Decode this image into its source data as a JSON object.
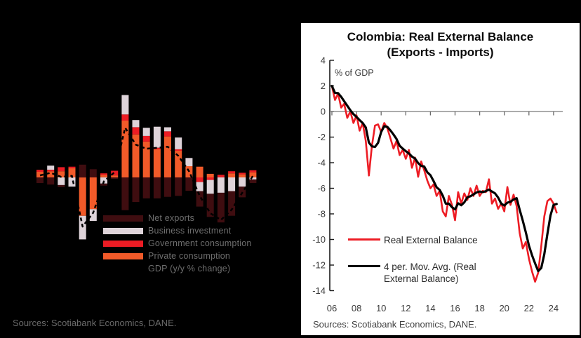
{
  "chart_data": [
    {
      "id": "gdp-contributions-stacked-bars",
      "type": "bar",
      "subtype": "stacked",
      "background": "#000000",
      "axis_labels_visible": false,
      "implied_unit": "percentage points",
      "n_bars": 21,
      "series": [
        {
          "name": "Private consumption",
          "color": "#f15a29",
          "values": [
            1.1,
            1.2,
            1.2,
            1.8,
            -7.5,
            -6.2,
            0.5,
            0.4,
            11.1,
            8.4,
            7.0,
            5.5,
            8.0,
            5.2,
            2.2,
            2.1,
            0.7,
            0.0,
            0.8,
            0.6,
            1.0
          ]
        },
        {
          "name": "Government consumption",
          "color": "#ec1c24",
          "values": [
            0.4,
            0.3,
            0.8,
            0.3,
            0.0,
            0.0,
            0.3,
            0.9,
            1.2,
            1.4,
            1.1,
            0.3,
            1.0,
            0.3,
            0.0,
            -0.9,
            -0.5,
            0.5,
            0.4,
            0.3,
            0.4
          ]
        },
        {
          "name": "Business investment",
          "color": "#ded3d9",
          "values": [
            0.0,
            0.8,
            -1.5,
            -1.8,
            -4.6,
            -2.3,
            -1.2,
            0.0,
            3.8,
            1.4,
            1.6,
            4.1,
            0.8,
            2.3,
            1.6,
            -1.8,
            -2.7,
            -3.0,
            -2.7,
            -1.8,
            -0.4
          ]
        },
        {
          "name": "Net exports",
          "color": "#3f0d10",
          "values": [
            -1.1,
            -1.4,
            -0.4,
            0.0,
            2.5,
            1.6,
            -0.4,
            -0.3,
            -6.4,
            -4.8,
            -4.1,
            -4.1,
            -3.8,
            -3.6,
            -2.6,
            -3.0,
            -4.5,
            -5.8,
            -4.8,
            -2.1,
            -0.7
          ]
        },
        {
          "name": "GDP (y/y % change)",
          "color": "#000000",
          "style": "dashed-line",
          "values": [
            0.4,
            0.9,
            0.1,
            0.3,
            -9.6,
            -6.9,
            -0.8,
            1.0,
            9.7,
            6.4,
            5.6,
            5.8,
            6.0,
            4.2,
            1.2,
            -3.6,
            -7.0,
            -8.3,
            -6.3,
            -3.0,
            0.3
          ]
        }
      ],
      "legend": [
        {
          "label": "Net exports",
          "color": "#3f0d10",
          "type": "swatch"
        },
        {
          "label": "Business investment",
          "color": "#ded3d9",
          "type": "swatch"
        },
        {
          "label": "Government consumption",
          "color": "#ec1c24",
          "type": "swatch"
        },
        {
          "label": "Private consumption",
          "color": "#f15a29",
          "type": "swatch"
        },
        {
          "label": "GDP (y/y % change)",
          "color": "#000000",
          "type": "dashed-line"
        }
      ],
      "sources": "Sources: Scotiabank Economics, DANE."
    },
    {
      "id": "real-external-balance-line",
      "type": "line",
      "title": "Colombia: Real External Balance (Exports - Imports)",
      "annotation": "% of GDP",
      "ylim": [
        -14,
        4
      ],
      "ytick_step": 2,
      "x_start_year": 2006,
      "x_step_years": 0.25,
      "xtick_labels": [
        "06",
        "08",
        "10",
        "12",
        "14",
        "16",
        "18",
        "20",
        "22",
        "24"
      ],
      "grid": "zero-line-only",
      "legend_position": "inside-lower-left",
      "series": [
        {
          "name": "Real External Balance",
          "color": "#ed1c24",
          "values": [
            2.0,
            0.9,
            1.4,
            0.3,
            0.6,
            -0.5,
            0.0,
            -0.9,
            -0.3,
            -1.5,
            -0.9,
            -2.3,
            -5.0,
            -2.7,
            -1.1,
            -1.0,
            -1.6,
            -0.9,
            -1.3,
            -2.1,
            -2.9,
            -2.3,
            -3.4,
            -3.0,
            -3.7,
            -3.0,
            -4.4,
            -3.6,
            -5.1,
            -3.9,
            -4.6,
            -5.4,
            -6.0,
            -5.7,
            -6.6,
            -6.2,
            -7.8,
            -8.2,
            -6.6,
            -7.3,
            -8.5,
            -6.3,
            -7.2,
            -6.4,
            -6.9,
            -6.0,
            -6.6,
            -5.8,
            -6.6,
            -6.2,
            -6.3,
            -5.3,
            -7.2,
            -6.8,
            -7.6,
            -7.2,
            -7.8,
            -5.9,
            -7.3,
            -6.5,
            -7.4,
            -9.5,
            -10.7,
            -10.2,
            -11.5,
            -12.5,
            -13.3,
            -12.6,
            -10.5,
            -8.2,
            -7.0,
            -6.8,
            -7.2,
            -7.9
          ]
        },
        {
          "name": "4 per. Mov. Avg. (Real External Balance)",
          "color": "#000000",
          "derived_from": "4-period moving average of Real External Balance"
        }
      ],
      "sources": "Sources: Scotiabank Economics, DANE."
    }
  ],
  "right_panel": {
    "title_line1": "Colombia: Real External Balance",
    "title_line2": "(Exports - Imports)",
    "pct_label": "% of GDP",
    "legend_line1": "Real External Balance",
    "legend_line2a": "4 per. Mov. Avg. (Real",
    "legend_line2b": "External Balance)"
  }
}
